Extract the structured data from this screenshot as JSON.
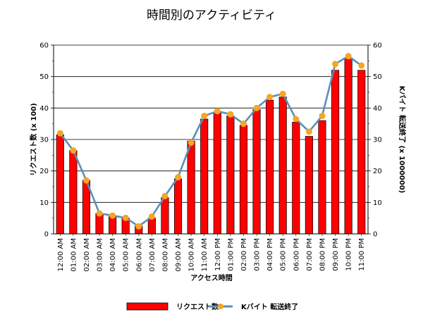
{
  "chart_data": {
    "type": "bar",
    "title": "時間別のアクティビティ",
    "xlabel": "アクセス時間",
    "ylabel": "リクエスト数 (x 100)",
    "y2label": "Kバイト 転送終了 (x 1000000)",
    "ylim": [
      0,
      60
    ],
    "y2lim": [
      0,
      60
    ],
    "yticks": [
      "0",
      "10",
      "20",
      "30",
      "40",
      "50",
      "60"
    ],
    "grid": true,
    "legend_position": "bottom",
    "categories": [
      "12:00 AM",
      "01:00 AM",
      "02:00 AM",
      "03:00 AM",
      "04:00 AM",
      "05:00 AM",
      "06:00 AM",
      "07:00 AM",
      "08:00 AM",
      "09:00 AM",
      "10:00 AM",
      "11:00 AM",
      "12:00 PM",
      "01:00 PM",
      "02:00 PM",
      "03:00 PM",
      "04:00 PM",
      "05:00 PM",
      "06:00 PM",
      "07:00 PM",
      "08:00 PM",
      "09:00 PM",
      "10:00 PM",
      "11:00 PM"
    ],
    "series": [
      {
        "name": "リクエスト数",
        "type": "bar",
        "axis": "left",
        "color": "#ff0000",
        "values": [
          31.5,
          26.5,
          17,
          6.5,
          5.5,
          5,
          2.5,
          5,
          11.5,
          17.5,
          29.5,
          36.5,
          38.5,
          37.5,
          34.5,
          39.5,
          42.5,
          43.5,
          35.5,
          31,
          36,
          52,
          56,
          52
        ]
      },
      {
        "name": "Kバイト 転送終了",
        "type": "line",
        "axis": "right",
        "color": "#5b8fb9",
        "marker_color": "#f5a623",
        "values": [
          32,
          26.5,
          17,
          6.5,
          5.8,
          5.1,
          2.4,
          5.5,
          12,
          18,
          29,
          37.5,
          39,
          38,
          35,
          40,
          43.5,
          44.5,
          36.5,
          32.5,
          37.5,
          54,
          56.5,
          53.5
        ]
      }
    ]
  }
}
